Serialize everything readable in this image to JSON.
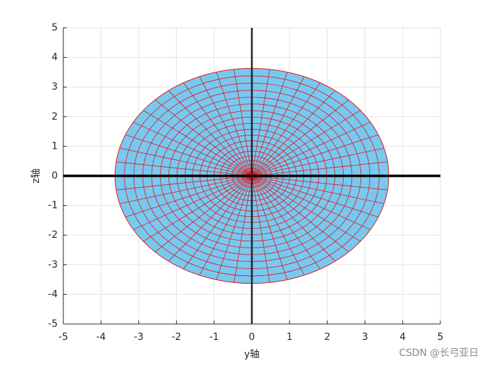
{
  "chart_data": {
    "type": "polar-mesh",
    "xlabel": "y轴",
    "ylabel": "z轴",
    "xlim": [
      -5,
      5
    ],
    "ylim": [
      -5,
      5
    ],
    "xticks": [
      -5,
      -4,
      -3,
      -2,
      -1,
      0,
      1,
      2,
      3,
      4,
      5
    ],
    "yticks": [
      -5,
      -4,
      -3,
      -2,
      -1,
      0,
      1,
      2,
      3,
      4,
      5
    ],
    "grid": true,
    "center": [
      0,
      0
    ],
    "radius": 3.63,
    "rings": 20,
    "spokes": 48,
    "face_color": "#78c9ef",
    "edge_color": "#e0141e",
    "hline": 0,
    "vline": 0,
    "watermark": "CSDN @长弓亚日"
  }
}
